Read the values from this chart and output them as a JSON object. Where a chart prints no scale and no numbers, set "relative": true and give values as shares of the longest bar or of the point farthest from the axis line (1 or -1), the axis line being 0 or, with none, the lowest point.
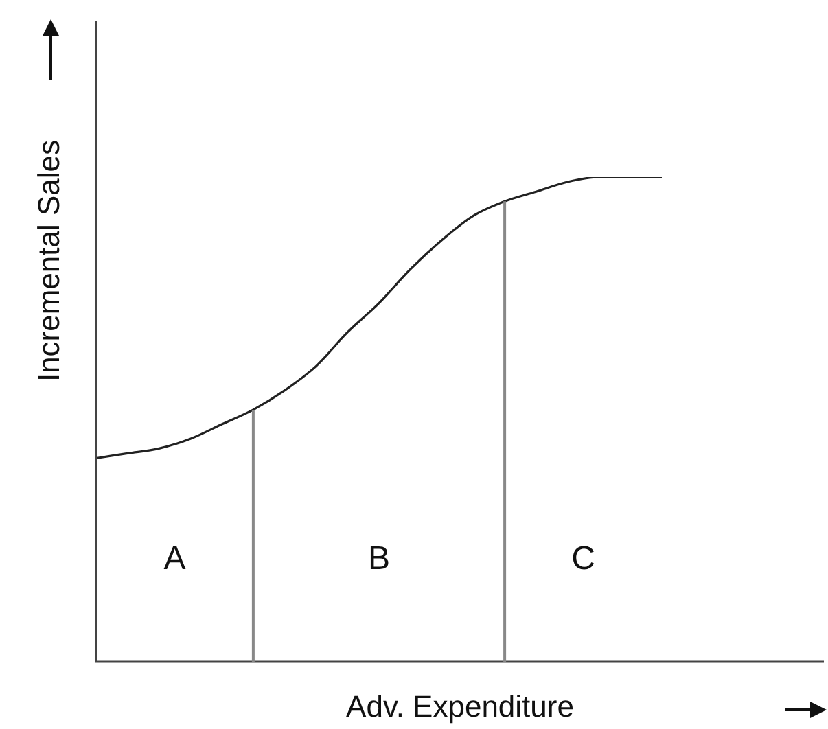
{
  "chart_data": {
    "type": "line",
    "relative": true,
    "xlabel": "Adv. Expenditure",
    "ylabel": "Incremental Sales",
    "categories": [
      null,
      null,
      null,
      null,
      null,
      null,
      null,
      null,
      null,
      null,
      null,
      null,
      null,
      null,
      null,
      null,
      null,
      null,
      null
    ],
    "values": [
      0.42,
      0.43,
      0.44,
      0.46,
      0.49,
      0.52,
      0.56,
      0.61,
      0.68,
      0.74,
      0.81,
      0.87,
      0.92,
      0.95,
      0.97,
      0.99,
      1,
      1,
      1
    ],
    "color": "#222222",
    "tick_labels": false,
    "legend": false,
    "annotations": [
      "A",
      "B",
      "C"
    ]
  }
}
